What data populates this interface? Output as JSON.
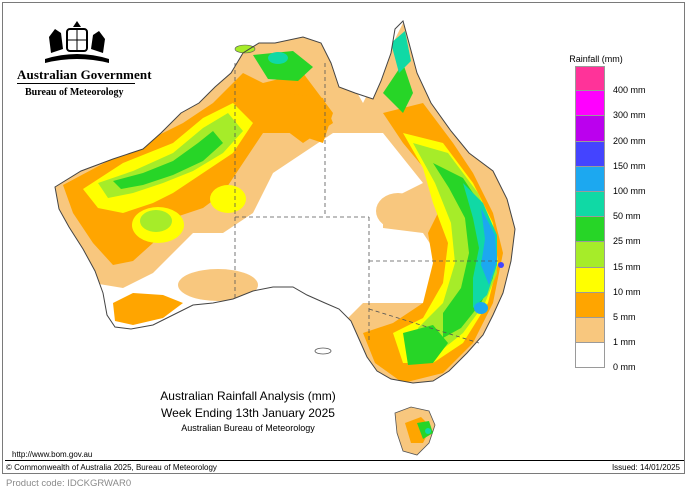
{
  "header": {
    "government": "Australian Government",
    "agency": "Bureau of Meteorology"
  },
  "map": {
    "title": "Australian Rainfall Analysis (mm)",
    "period": "Week Ending 13th January 2025",
    "source": "Australian Bureau of Meteorology",
    "url": "http://www.bom.gov.au"
  },
  "legend": {
    "title": "Rainfall (mm)",
    "items": [
      {
        "label": "",
        "color": "#ff3399"
      },
      {
        "label": "400 mm",
        "color": "#ff00ff"
      },
      {
        "label": "300 mm",
        "color": "#bb00ee"
      },
      {
        "label": "200 mm",
        "color": "#4444ff"
      },
      {
        "label": "150 mm",
        "color": "#1ca8f0"
      },
      {
        "label": "100 mm",
        "color": "#10d9a5"
      },
      {
        "label": "50 mm",
        "color": "#27d527"
      },
      {
        "label": "25 mm",
        "color": "#a6ec29"
      },
      {
        "label": "15 mm",
        "color": "#ffff00"
      },
      {
        "label": "10 mm",
        "color": "#ffa500"
      },
      {
        "label": "5 mm",
        "color": "#f8c77e"
      },
      {
        "label": "1 mm",
        "color": "#ffffff"
      },
      {
        "label": "0 mm",
        "color": ""
      }
    ]
  },
  "footer": {
    "copyright": "© Commonwealth of Australia 2025, Bureau of Meteorology",
    "issued": "Issued: 14/01/2025",
    "product_code": "Product code: IDCKGRWAR0"
  }
}
